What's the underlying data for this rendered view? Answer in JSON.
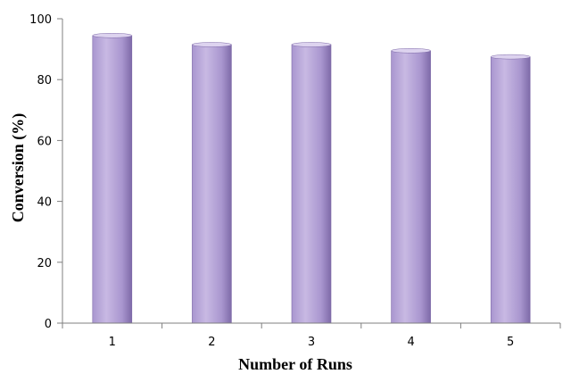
{
  "chart_data": {
    "type": "bar",
    "categories": [
      "1",
      "2",
      "3",
      "4",
      "5"
    ],
    "values": [
      94.5,
      91.5,
      91.5,
      89.5,
      87.5
    ],
    "title": "",
    "xlabel": "Number of Runs",
    "ylabel": "Conversion (%)",
    "ylim": [
      0,
      100
    ],
    "yticks": [
      0,
      20,
      40,
      60,
      80,
      100
    ],
    "grid": false,
    "legend": "none",
    "bar_color_light": "#c8b9e3",
    "bar_color_mid": "#a996cf",
    "bar_color_dark": "#7e6aa8",
    "bar_top_color": "#ddd3ef",
    "axis_color": "#7f7f7f"
  }
}
